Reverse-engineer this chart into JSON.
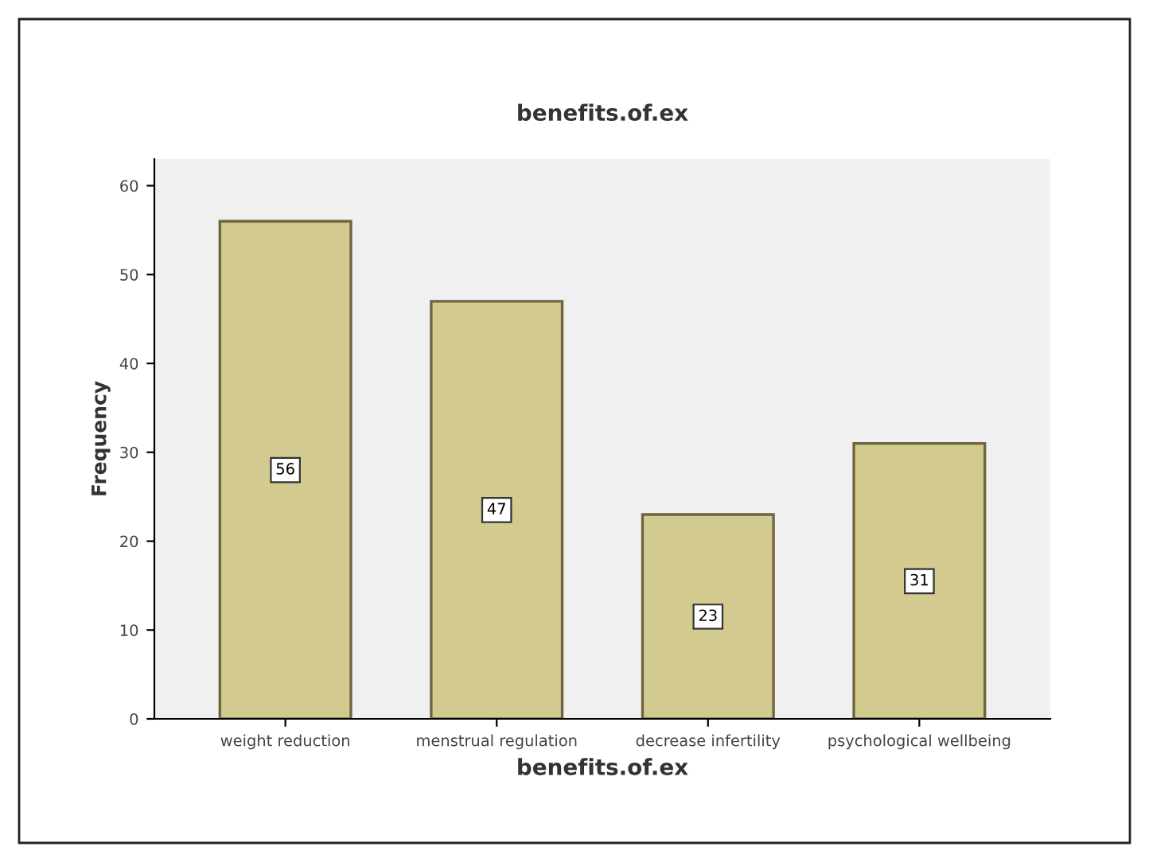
{
  "chart_data": {
    "type": "bar",
    "title": "benefits.of.ex",
    "xlabel": "benefits.of.ex",
    "ylabel": "Frequency",
    "categories": [
      "weight reduction",
      "menstrual regulation",
      "decrease infertility",
      "psychological wellbeing"
    ],
    "values": [
      56,
      47,
      23,
      31
    ],
    "color": "#d3ca8f",
    "ylim": [
      0,
      63
    ],
    "yticks": [
      0,
      10,
      20,
      30,
      40,
      50,
      60
    ],
    "data_labels": true,
    "grid": false,
    "legend": false
  }
}
